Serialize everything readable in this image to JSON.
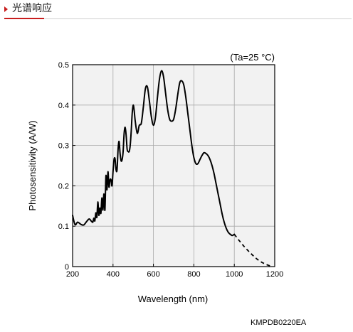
{
  "header": {
    "title": "光谱响应"
  },
  "chart_data": {
    "type": "line",
    "title": "",
    "annotation": "(Ta=25 °C)",
    "xlabel": "Wavelength (nm)",
    "ylabel": "Photosensitivity (A/W)",
    "xlim": [
      200,
      1200
    ],
    "ylim": [
      0,
      0.5
    ],
    "xticks": [
      200,
      400,
      600,
      800,
      1000,
      1200
    ],
    "yticks": [
      0,
      0.1,
      0.2,
      0.3,
      0.4,
      0.5
    ],
    "xtick_labels": [
      "200",
      "400",
      "600",
      "800",
      "1000",
      "1200"
    ],
    "ytick_labels": [
      "0",
      "0.1",
      "0.2",
      "0.3",
      "0.4",
      "0.5"
    ],
    "grid": true,
    "legend": "none",
    "line_color": "#000000",
    "grid_color": "#a9a9a9",
    "plot_background": "#f2f2f2",
    "series": [
      {
        "style": "solid",
        "x": [
          200,
          205,
          212,
          220,
          230,
          240,
          250,
          260,
          270,
          280,
          290,
          295,
          300,
          305,
          310,
          315,
          320,
          325,
          330,
          335,
          340,
          345,
          350,
          355,
          360,
          365,
          370,
          375,
          380,
          385,
          390,
          395,
          400,
          405,
          410,
          415,
          420,
          425,
          430,
          435,
          440,
          445,
          450,
          455,
          460,
          465,
          470,
          475,
          480,
          485,
          490,
          495,
          500,
          505,
          510,
          515,
          520,
          525,
          530,
          535,
          540,
          545,
          550,
          555,
          560,
          565,
          570,
          575,
          580,
          585,
          590,
          595,
          600,
          605,
          610,
          615,
          620,
          625,
          630,
          635,
          640,
          645,
          650,
          655,
          660,
          665,
          670,
          680,
          690,
          700,
          705,
          710,
          715,
          720,
          730,
          740,
          750,
          760,
          770,
          780,
          790,
          800,
          810,
          820,
          830,
          840,
          850,
          860,
          870,
          880,
          890,
          900,
          910,
          920,
          930,
          940,
          950,
          960,
          970,
          980,
          990,
          1000
        ],
        "y": [
          0.128,
          0.115,
          0.103,
          0.103,
          0.11,
          0.108,
          0.104,
          0.103,
          0.11,
          0.118,
          0.112,
          0.12,
          0.115,
          0.108,
          0.125,
          0.112,
          0.138,
          0.12,
          0.14,
          0.128,
          0.165,
          0.135,
          0.172,
          0.138,
          0.17,
          0.14,
          0.195,
          0.16,
          0.225,
          0.175,
          0.205,
          0.215,
          0.235,
          0.2,
          0.245,
          0.2,
          0.235,
          0.21,
          0.265,
          0.265,
          0.245,
          0.23,
          0.245,
          0.29,
          0.31,
          0.29,
          0.265,
          0.258,
          0.275,
          0.3,
          0.34,
          0.33,
          0.305,
          0.29,
          0.285,
          0.285,
          0.35,
          0.395,
          0.39,
          0.37,
          0.35,
          0.35,
          0.365,
          0.395,
          0.425,
          0.445,
          0.44,
          0.42,
          0.395,
          0.37,
          0.355,
          0.35,
          0.355,
          0.37,
          0.395,
          0.43,
          0.46,
          0.482,
          0.485,
          0.475,
          0.455,
          0.43,
          0.405,
          0.38,
          0.365,
          0.36,
          0.363,
          0.385,
          0.415,
          0.445,
          0.455,
          0.46,
          0.455,
          0.445,
          0.405,
          0.36,
          0.31,
          0.275,
          0.255,
          0.255,
          0.26,
          0.27,
          0.28,
          0.282,
          0.28,
          0.27,
          0.255,
          0.23,
          0.2,
          0.17,
          0.14,
          0.11,
          0.095,
          0.085,
          0.08,
          0.078,
          0.076,
          0.074,
          0.072,
          0.07,
          0.068,
          0.066
        ],
        "x_measured": [
          200,
          212,
          225,
          240,
          255,
          270,
          282,
          292,
          300,
          305,
          310,
          315,
          320,
          325,
          330,
          335,
          340,
          345,
          350,
          355,
          360,
          365,
          370,
          375,
          380,
          385,
          390,
          395,
          400,
          405,
          410,
          415,
          420,
          425,
          430,
          435,
          440,
          445,
          450,
          455,
          460,
          465,
          470,
          475,
          480,
          485,
          490,
          495,
          500,
          505,
          510,
          520,
          530,
          540,
          550,
          560,
          570,
          580,
          590,
          600,
          610,
          620,
          630,
          640,
          650,
          660,
          670,
          680,
          690,
          700,
          710,
          720,
          730,
          740,
          750,
          760,
          770,
          780,
          790,
          800,
          810,
          820,
          830,
          840,
          850,
          860,
          870,
          880,
          890,
          900,
          910,
          920,
          930,
          940,
          950,
          960,
          970,
          980,
          990,
          1000
        ],
        "y_measured": [
          0.127,
          0.104,
          0.11,
          0.105,
          0.103,
          0.112,
          0.118,
          0.113,
          0.11,
          0.12,
          0.113,
          0.133,
          0.122,
          0.16,
          0.127,
          0.145,
          0.132,
          0.17,
          0.14,
          0.18,
          0.14,
          0.225,
          0.19,
          0.235,
          0.197,
          0.215,
          0.215,
          0.2,
          0.235,
          0.265,
          0.267,
          0.24,
          0.24,
          0.29,
          0.31,
          0.28,
          0.262,
          0.265,
          0.285,
          0.33,
          0.345,
          0.325,
          0.29,
          0.285,
          0.285,
          0.3,
          0.335,
          0.38,
          0.4,
          0.385,
          0.36,
          0.33,
          0.35,
          0.355,
          0.395,
          0.44,
          0.445,
          0.41,
          0.37,
          0.35,
          0.37,
          0.42,
          0.465,
          0.485,
          0.47,
          0.43,
          0.39,
          0.365,
          0.36,
          0.365,
          0.39,
          0.425,
          0.455,
          0.46,
          0.45,
          0.42,
          0.38,
          0.34,
          0.3,
          0.27,
          0.255,
          0.255,
          0.265,
          0.275,
          0.282,
          0.28,
          0.275,
          0.265,
          0.25,
          0.23,
          0.205,
          0.18,
          0.155,
          0.13,
          0.11,
          0.095,
          0.085,
          0.08,
          0.077,
          0.08
        ]
      },
      {
        "style": "dashed",
        "x": [
          1000,
          1025,
          1050,
          1075,
          1100,
          1125,
          1150,
          1175,
          1190
        ],
        "y": [
          0.08,
          0.064,
          0.049,
          0.036,
          0.024,
          0.014,
          0.007,
          0.002,
          0.0
        ]
      }
    ]
  },
  "figure_code": "KMPDB0220EA"
}
